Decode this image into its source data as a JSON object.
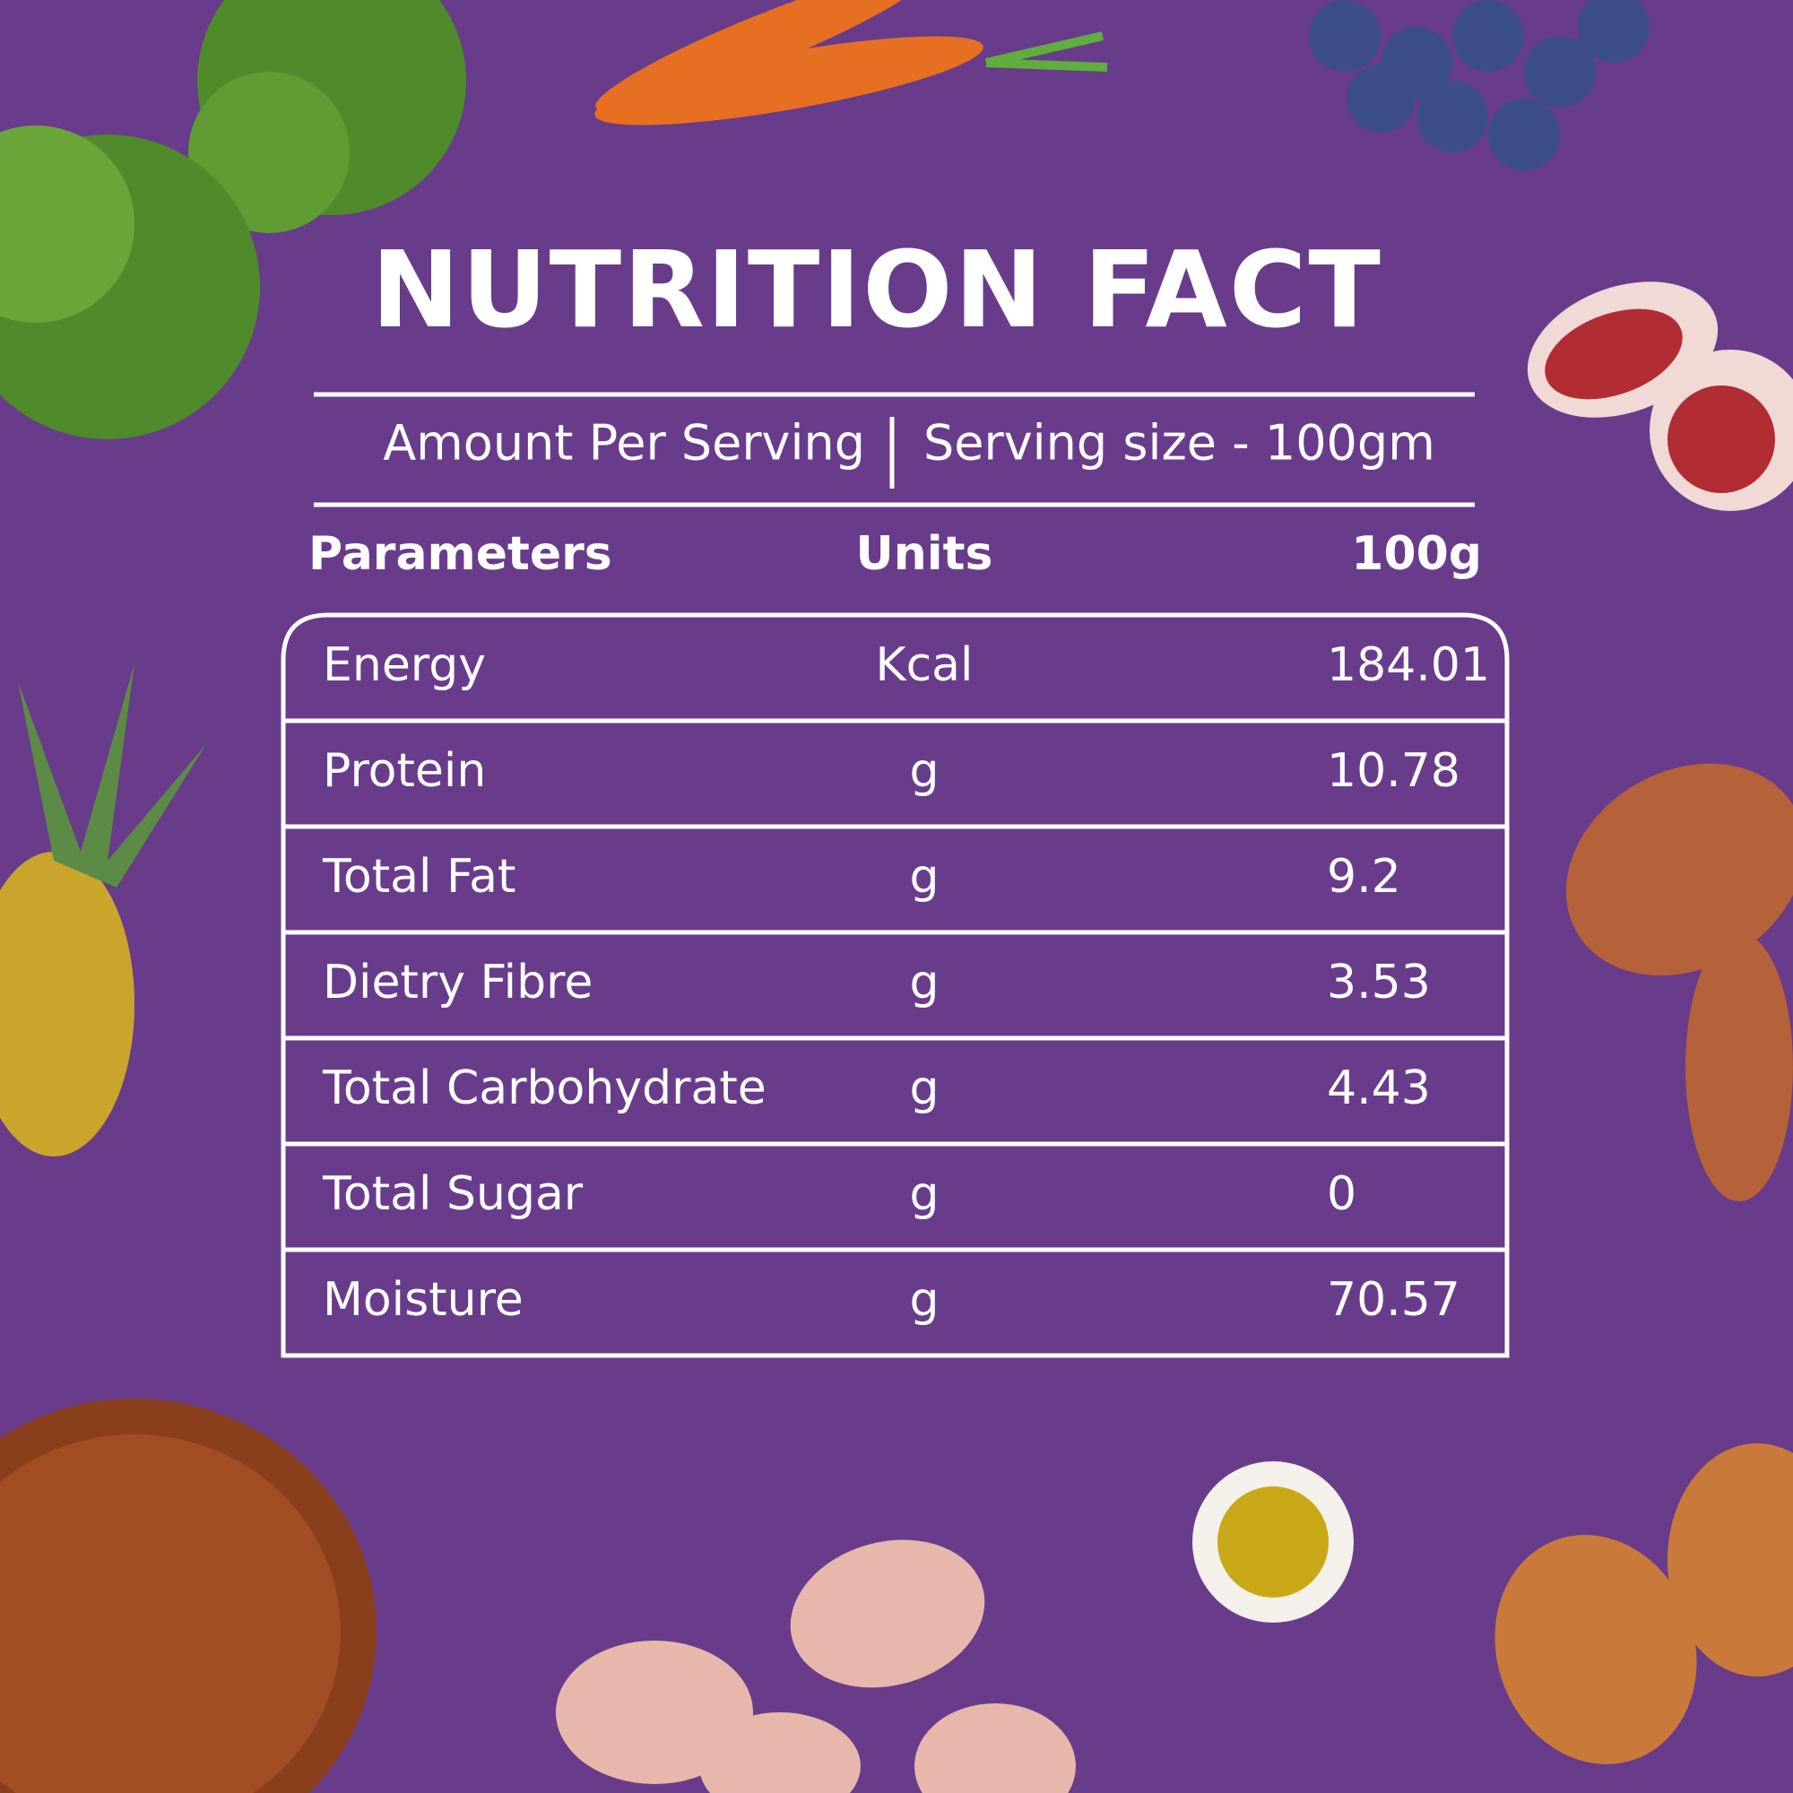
{
  "title": "NUTRITION FACT",
  "serving": {
    "left": "Amount Per Serving",
    "right": "Serving size - 100gm"
  },
  "table": {
    "header": [
      "Parameters",
      "Units",
      "100g"
    ],
    "rows": [
      [
        "Energy",
        "Kcal",
        184.01
      ],
      [
        "Protein",
        "g",
        10.78
      ],
      [
        "Total Fat",
        "g",
        9.2
      ],
      [
        "Dietry Fibre",
        "g",
        3.53
      ],
      [
        "Total Carbohydrate",
        "g",
        4.43
      ],
      [
        "Total Sugar",
        "g",
        0
      ],
      [
        "Moisture",
        "g",
        70.57
      ]
    ]
  }
}
